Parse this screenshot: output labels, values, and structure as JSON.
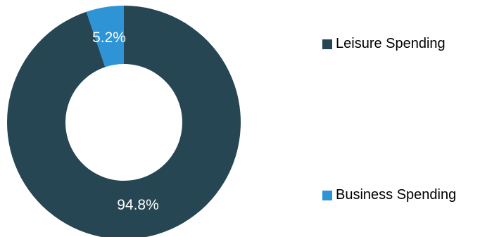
{
  "chart_data": {
    "type": "pie",
    "style": "donut",
    "series": [
      {
        "name": "Leisure Spending",
        "value": 94.8,
        "label": "94.8%",
        "color": "#264653"
      },
      {
        "name": "Business Spending",
        "value": 5.2,
        "label": "5.2%",
        "color": "#2f94d6"
      }
    ],
    "legend_position": "right",
    "title": ""
  }
}
